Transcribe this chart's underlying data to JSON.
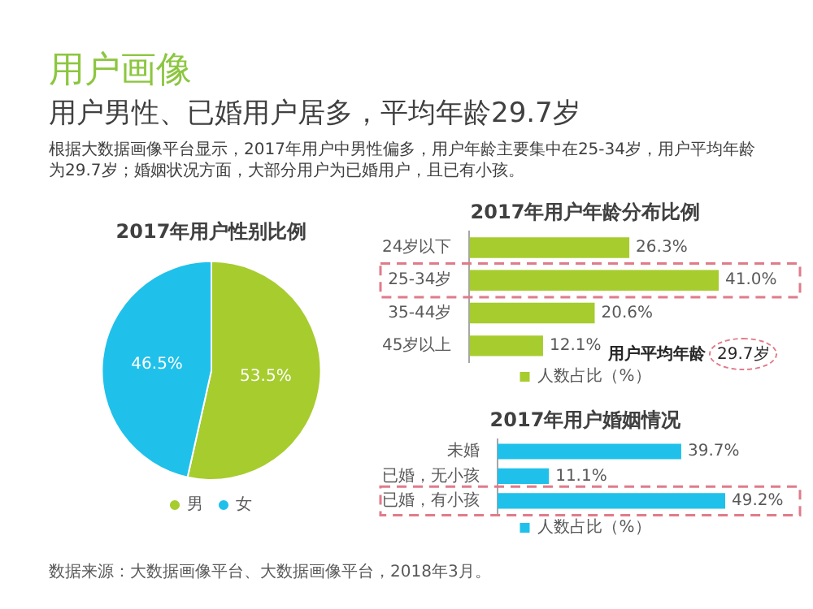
{
  "chart_data": [
    {
      "type": "pie",
      "title": "2017年用户性别比例",
      "categories": [
        "男",
        "女"
      ],
      "values": [
        53.5,
        46.5
      ],
      "colors": [
        "#a6cc2e",
        "#1fc1ea"
      ],
      "value_labels": [
        "53.5%",
        "46.5%"
      ],
      "legend": "bottom",
      "annotations": [
        "用户画像",
        "用户男性、已婚用户居多，平均年龄29.7岁",
        "根据大数据画像平台显示，2017年用户中男性偏多，用户年龄主要集中在25-34岁，用户平均年龄为29.7岁；婚姻状况方面，大部分用户为已婚用户，且已有小孩。",
        "数据来源：大数据画像平台、大数据画像平台，2018年3月。"
      ]
    },
    {
      "type": "bar",
      "orientation": "horizontal",
      "title": "2017年用户年龄分布比例",
      "categories": [
        "24岁以下",
        "25-34岁",
        "35-44岁",
        "45岁以上"
      ],
      "series": [
        {
          "name": "人数占比（%）",
          "color": "#a6cc2e",
          "values": [
            26.3,
            41.0,
            20.6,
            12.1
          ],
          "value_labels": [
            "26.3%",
            "41.0%",
            "20.6%",
            "12.1%"
          ]
        }
      ],
      "legend": "bottom",
      "tick_labels": "y",
      "annotations": [
        "用户平均年龄",
        "29.7岁"
      ]
    },
    {
      "type": "bar",
      "orientation": "horizontal",
      "title": "2017年用户婚姻情况",
      "categories": [
        "未婚",
        "已婚，无小孩",
        "已婚，有小孩"
      ],
      "series": [
        {
          "name": "人数占比（%）",
          "color": "#1fc1ea",
          "values": [
            39.7,
            11.1,
            49.2
          ],
          "value_labels": [
            "39.7%",
            "11.1%",
            "49.2%"
          ]
        }
      ],
      "legend": "bottom",
      "tick_labels": "y"
    }
  ]
}
